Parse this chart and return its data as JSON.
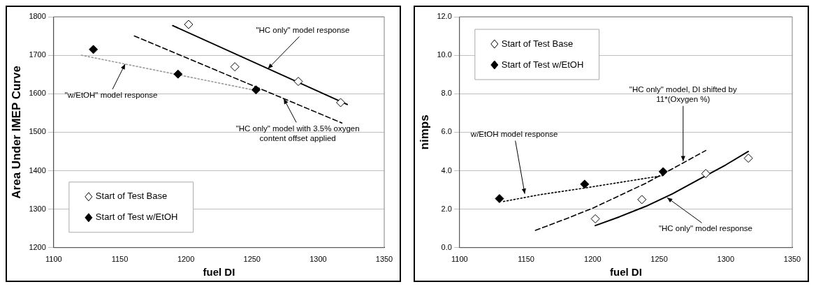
{
  "chart_data": [
    {
      "type": "scatter",
      "xlabel": "fuel DI",
      "ylabel": "Area Under IMEP Curve",
      "xlim": [
        1100,
        1350
      ],
      "xticks": [
        1100,
        1150,
        1200,
        1250,
        1300,
        1350
      ],
      "ylim": [
        1200,
        1800
      ],
      "yticks": [
        1200,
        1300,
        1400,
        1500,
        1600,
        1700,
        1800
      ],
      "grid": "y",
      "legend": "bottom left",
      "series": [
        {
          "name": "Start of Test Base",
          "color": "#000000",
          "marker": "diamond",
          "x": [
            1202,
            1237,
            1285,
            1317
          ],
          "values": [
            1780,
            1670,
            1632,
            1577
          ]
        },
        {
          "name": "Start of Test w/EtOH",
          "color": "#000000",
          "marker": "diamond",
          "x": [
            1130,
            1194,
            1253
          ],
          "values": [
            1715,
            1651,
            1610
          ]
        },
        {
          "type": "line",
          "color": "#000000",
          "line_style": "solid",
          "x": [
            1190,
            1322
          ],
          "values": [
            1777,
            1572
          ]
        },
        {
          "type": "line",
          "color": "#000000",
          "line_style": "dashed",
          "x": [
            1161,
            1318
          ],
          "values": [
            1750,
            1524
          ]
        },
        {
          "type": "line",
          "color": "#999999",
          "line_style": "dotted",
          "x": [
            1121,
            1255
          ],
          "values": [
            1700,
            1607
          ]
        }
      ],
      "annotations": [
        {
          "text": "\"HC only\" model response",
          "x": 1262,
          "y": 1665
        },
        {
          "text": "\"w/EtOH\" model response",
          "x": 1154,
          "y": 1677
        },
        {
          "text": "\"HC only\" model with 3.5% oxygen content offset applied",
          "x": 1274,
          "y": 1587
        }
      ]
    },
    {
      "type": "scatter",
      "xlabel": "fuel DI",
      "ylabel": "nimps",
      "xlim": [
        1100,
        1350
      ],
      "xticks": [
        1100,
        1150,
        1200,
        1250,
        1300,
        1350
      ],
      "ylim": [
        0,
        12
      ],
      "yticks": [
        {
          "value": 0,
          "label": "0.0"
        },
        {
          "value": 2,
          "label": "2.0"
        },
        {
          "value": 4,
          "label": "4.0"
        },
        {
          "value": 6,
          "label": "6.0"
        },
        {
          "value": 8,
          "label": "8.0"
        },
        {
          "value": 10,
          "label": "10.0"
        },
        {
          "value": 12,
          "label": "12.0"
        }
      ],
      "grid": "y",
      "legend": "top left",
      "series": [
        {
          "name": "Start of Test Base",
          "color": "#000000",
          "marker": "diamond",
          "x": [
            1202,
            1237,
            1285,
            1317
          ],
          "values": [
            1.5,
            2.5,
            3.85,
            4.65
          ]
        },
        {
          "name": "Start of Test w/EtOH",
          "color": "#000000",
          "marker": "diamond",
          "x": [
            1130,
            1194,
            1253
          ],
          "values": [
            2.55,
            3.3,
            3.95
          ]
        },
        {
          "type": "line",
          "color": "#000000",
          "line_style": "solid",
          "x": [
            1202,
            1220,
            1240,
            1260,
            1280,
            1300,
            1317
          ],
          "values": [
            1.15,
            1.6,
            2.15,
            2.8,
            3.55,
            4.3,
            5.0
          ]
        },
        {
          "type": "line",
          "color": "#000000",
          "line_style": "dashed",
          "x": [
            1157,
            1180,
            1200,
            1220,
            1240,
            1260,
            1285
          ],
          "values": [
            0.9,
            1.5,
            2.05,
            2.7,
            3.35,
            4.1,
            5.05
          ]
        },
        {
          "type": "line",
          "color": "#000000",
          "line_style": "dotted",
          "x": [
            1133,
            1160,
            1194,
            1253
          ],
          "values": [
            2.4,
            2.75,
            3.1,
            3.75
          ]
        }
      ],
      "annotations": [
        {
          "text": "w/EtOH model response",
          "x": 1149,
          "y": 2.8
        },
        {
          "text": "\"HC only\" model, DI shifted by 11*(Oxygen %)",
          "x": 1268,
          "y": 4.5
        },
        {
          "text": "\"HC only\" model response",
          "x": 1256,
          "y": 2.6
        }
      ]
    }
  ]
}
